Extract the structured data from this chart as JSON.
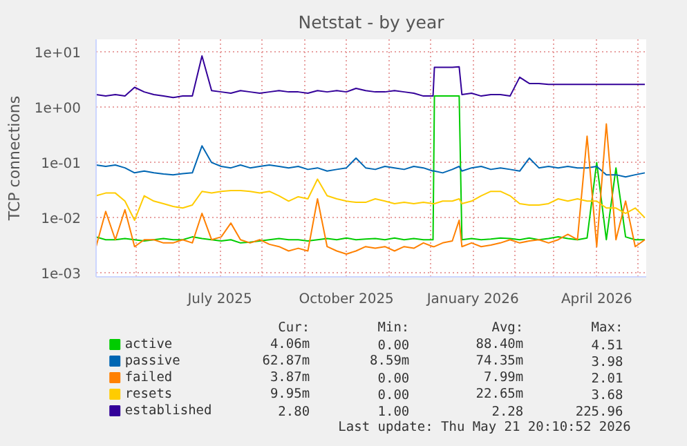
{
  "chart_data": {
    "type": "line",
    "title": "Netstat - by year",
    "ylabel": "TCP connections",
    "log": "y",
    "grid": true,
    "legend": "bottom",
    "line_style": "solid",
    "marker": "none",
    "xlim": [
      "2025-04-02",
      "2026-05-07"
    ],
    "ylim": [
      0.00085,
      17
    ],
    "xticks": [
      {
        "value": "2025-05-01",
        "label": null
      },
      {
        "value": "2025-06-01",
        "label": null
      },
      {
        "value": "2025-07-01",
        "label": "July 2025"
      },
      {
        "value": "2025-08-01",
        "label": null
      },
      {
        "value": "2025-09-01",
        "label": null
      },
      {
        "value": "2025-10-01",
        "label": "October 2025"
      },
      {
        "value": "2025-11-01",
        "label": null
      },
      {
        "value": "2025-12-01",
        "label": null
      },
      {
        "value": "2026-01-01",
        "label": "January 2026"
      },
      {
        "value": "2026-02-01",
        "label": null
      },
      {
        "value": "2026-03-01",
        "label": null
      },
      {
        "value": "2026-04-01",
        "label": "April 2026"
      },
      {
        "value": "2026-05-01",
        "label": null
      }
    ],
    "yticks": [
      {
        "value": 0.001,
        "label": "1e-03"
      },
      {
        "value": 0.01,
        "label": "1e-02"
      },
      {
        "value": 0.1,
        "label": "1e-01"
      },
      {
        "value": 1,
        "label": "1e+00"
      },
      {
        "value": 10,
        "label": "1e+01"
      }
    ],
    "x": [
      "2025-04-02",
      "2025-04-09",
      "2025-04-16",
      "2025-04-23",
      "2025-04-30",
      "2025-05-07",
      "2025-05-14",
      "2025-05-21",
      "2025-05-28",
      "2025-06-04",
      "2025-06-11",
      "2025-06-18",
      "2025-06-25",
      "2025-07-02",
      "2025-07-09",
      "2025-07-16",
      "2025-07-23",
      "2025-07-30",
      "2025-08-06",
      "2025-08-13",
      "2025-08-20",
      "2025-08-27",
      "2025-09-03",
      "2025-09-10",
      "2025-09-17",
      "2025-09-24",
      "2025-10-01",
      "2025-10-08",
      "2025-10-15",
      "2025-10-22",
      "2025-10-29",
      "2025-11-05",
      "2025-11-12",
      "2025-11-19",
      "2025-11-26",
      "2025-12-03",
      "2025-12-04",
      "2025-12-10",
      "2025-12-17",
      "2025-12-22",
      "2025-12-24",
      "2025-12-31",
      "2026-01-07",
      "2026-01-14",
      "2026-01-21",
      "2026-01-28",
      "2026-02-04",
      "2026-02-11",
      "2026-02-18",
      "2026-02-25",
      "2026-03-04",
      "2026-03-11",
      "2026-03-18",
      "2026-03-25",
      "2026-04-01",
      "2026-04-08",
      "2026-04-15",
      "2026-04-22",
      "2026-04-29",
      "2026-05-06"
    ],
    "series": [
      {
        "name": "active",
        "color": "#00cc00",
        "values": [
          0.0045,
          0.004,
          0.004,
          0.0042,
          0.004,
          0.0038,
          0.004,
          0.0042,
          0.004,
          0.004,
          0.0045,
          0.0042,
          0.004,
          0.0038,
          0.004,
          0.0035,
          0.0036,
          0.0038,
          0.004,
          0.0042,
          0.004,
          0.004,
          0.0038,
          0.004,
          0.0042,
          0.004,
          0.0043,
          0.004,
          0.0041,
          0.0042,
          0.004,
          0.0043,
          0.004,
          0.0042,
          0.004,
          0.004,
          1.6,
          1.6,
          1.6,
          1.6,
          0.004,
          0.0042,
          0.004,
          0.0041,
          0.0043,
          0.0042,
          0.004,
          0.0043,
          0.004,
          0.0042,
          0.0045,
          0.0042,
          0.004,
          0.0043,
          0.1,
          0.004,
          0.08,
          0.0045,
          0.004,
          0.004
        ]
      },
      {
        "name": "passive",
        "color": "#0066b3",
        "values": [
          0.09,
          0.085,
          0.09,
          0.08,
          0.065,
          0.07,
          0.065,
          0.062,
          0.06,
          0.063,
          0.065,
          0.2,
          0.1,
          0.085,
          0.08,
          0.09,
          0.08,
          0.085,
          0.09,
          0.085,
          0.08,
          0.085,
          0.075,
          0.08,
          0.07,
          0.075,
          0.08,
          0.12,
          0.08,
          0.075,
          0.085,
          0.08,
          0.075,
          0.085,
          0.08,
          0.07,
          0.07,
          0.065,
          0.075,
          0.085,
          0.07,
          0.08,
          0.085,
          0.075,
          0.08,
          0.075,
          0.07,
          0.12,
          0.08,
          0.085,
          0.08,
          0.085,
          0.08,
          0.08,
          0.085,
          0.06,
          0.06,
          0.055,
          0.06,
          0.065
        ]
      },
      {
        "name": "failed",
        "color": "#ff8000",
        "values": [
          0.003,
          0.013,
          0.004,
          0.014,
          0.003,
          0.004,
          0.004,
          0.0035,
          0.0035,
          0.004,
          0.0035,
          0.012,
          0.004,
          0.0045,
          0.008,
          0.004,
          0.0035,
          0.004,
          0.0033,
          0.003,
          0.0025,
          0.0028,
          0.0025,
          0.022,
          0.003,
          0.0025,
          0.0022,
          0.0025,
          0.003,
          0.0028,
          0.003,
          0.0025,
          0.003,
          0.0028,
          0.0035,
          0.003,
          0.003,
          0.0035,
          0.0038,
          0.009,
          0.003,
          0.0035,
          0.003,
          0.0032,
          0.0035,
          0.004,
          0.0035,
          0.0038,
          0.004,
          0.0035,
          0.004,
          0.005,
          0.004,
          0.3,
          0.003,
          0.5,
          0.004,
          0.02,
          0.003,
          0.004
        ]
      },
      {
        "name": "resets",
        "color": "#ffcc00",
        "values": [
          0.025,
          0.028,
          0.028,
          0.02,
          0.009,
          0.025,
          0.02,
          0.018,
          0.016,
          0.015,
          0.017,
          0.03,
          0.028,
          0.03,
          0.031,
          0.031,
          0.03,
          0.028,
          0.03,
          0.025,
          0.02,
          0.024,
          0.022,
          0.05,
          0.025,
          0.022,
          0.02,
          0.019,
          0.019,
          0.022,
          0.02,
          0.018,
          0.019,
          0.018,
          0.019,
          0.018,
          0.018,
          0.02,
          0.02,
          0.022,
          0.018,
          0.02,
          0.025,
          0.03,
          0.03,
          0.025,
          0.018,
          0.017,
          0.017,
          0.018,
          0.022,
          0.02,
          0.022,
          0.02,
          0.02,
          0.015,
          0.015,
          0.012,
          0.015,
          0.01
        ]
      },
      {
        "name": "established",
        "color": "#330099",
        "values": [
          1.7,
          1.6,
          1.7,
          1.6,
          2.3,
          1.9,
          1.7,
          1.6,
          1.5,
          1.6,
          1.6,
          8.5,
          2.0,
          1.9,
          1.8,
          2.0,
          1.9,
          1.8,
          1.9,
          2.0,
          1.9,
          1.9,
          1.8,
          2.0,
          1.9,
          2.0,
          1.9,
          2.2,
          2.0,
          1.9,
          1.9,
          2.0,
          1.9,
          1.8,
          1.6,
          1.6,
          5.3,
          5.3,
          5.3,
          5.4,
          1.7,
          1.8,
          1.6,
          1.7,
          1.7,
          1.6,
          3.5,
          2.7,
          2.7,
          2.6,
          2.6,
          2.6,
          2.6,
          2.6,
          2.6,
          2.6,
          2.6,
          2.6,
          2.6,
          2.6
        ]
      }
    ],
    "annotations": [
      "Cur:",
      "Min:",
      "Avg:",
      "Max:",
      "4.06m",
      "0.00",
      "88.40m",
      "4.51",
      "62.87m",
      "8.59m",
      "74.35m",
      "3.98",
      "3.87m",
      "0.00",
      "7.99m",
      "2.01",
      "9.95m",
      "0.00",
      "22.65m",
      "3.68",
      "2.80",
      "1.00",
      "2.28",
      "225.96",
      "Last update: Thu May 21 20:10:52 2026"
    ]
  }
}
